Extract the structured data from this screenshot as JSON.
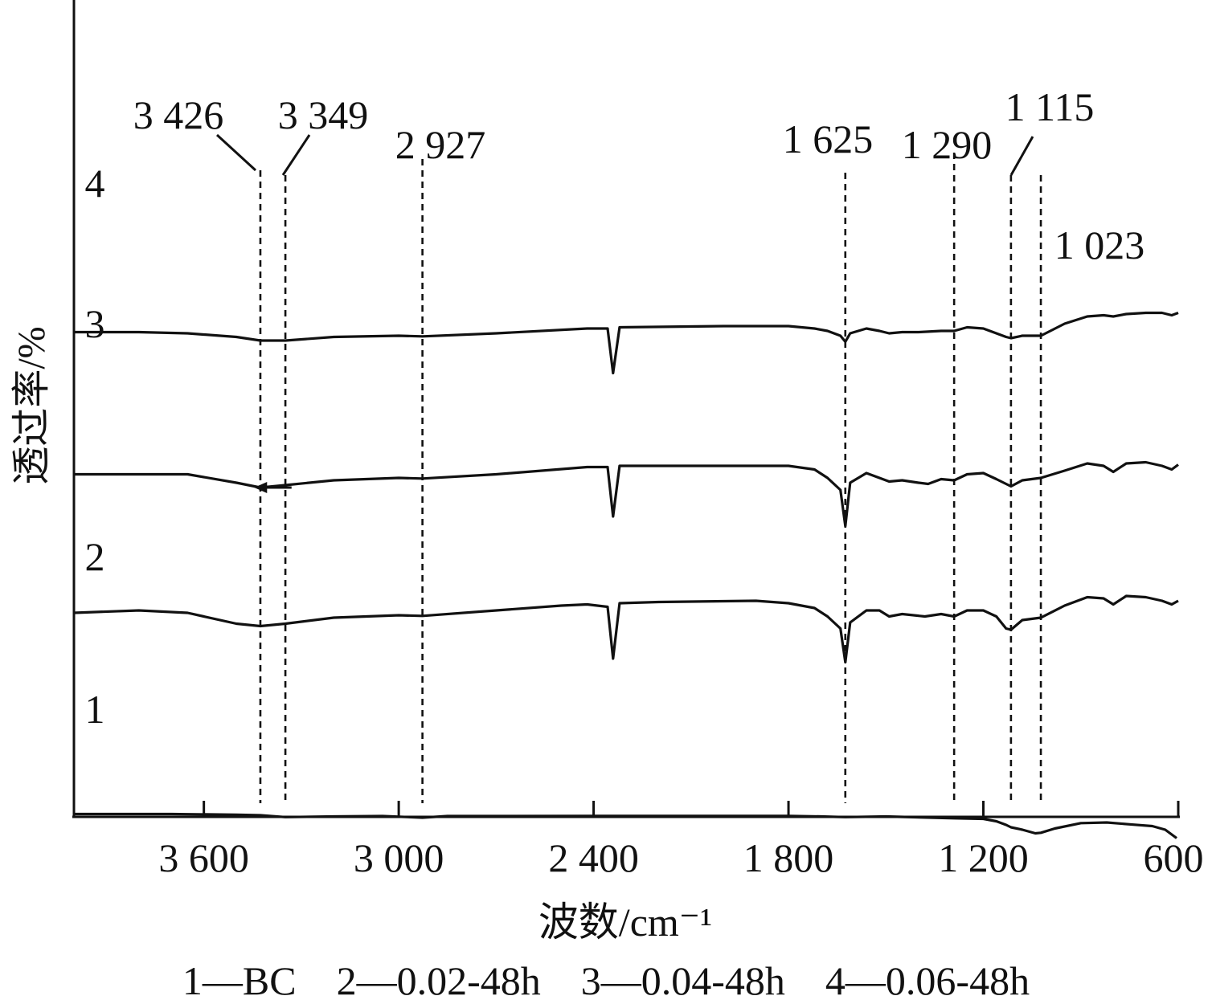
{
  "chart_data": {
    "type": "line",
    "xlabel": "波数/cm⁻¹",
    "ylabel": "透过率/%",
    "xlim": [
      4000,
      600
    ],
    "x_reversed": true,
    "x_ticks": [
      3600,
      3000,
      2400,
      1800,
      1200,
      600
    ],
    "x_tick_labels": [
      "3 600",
      "3 000",
      "2 400",
      "1 800",
      "1 200",
      "600"
    ],
    "y_ticks_shown": false,
    "series": [
      {
        "name": "1",
        "points": [
          [
            4000,
            0.91
          ],
          [
            3700,
            0.91
          ],
          [
            3500,
            0.905
          ],
          [
            3426,
            0.9
          ],
          [
            3349,
            0.885
          ],
          [
            3200,
            0.89
          ],
          [
            3050,
            0.893
          ],
          [
            2927,
            0.88
          ],
          [
            2850,
            0.893
          ],
          [
            2400,
            0.895
          ],
          [
            1800,
            0.895
          ],
          [
            1700,
            0.89
          ],
          [
            1625,
            0.885
          ],
          [
            1500,
            0.89
          ],
          [
            1290,
            0.875
          ],
          [
            1200,
            0.87
          ],
          [
            1160,
            0.85
          ],
          [
            1130,
            0.82
          ],
          [
            1115,
            0.8
          ],
          [
            1080,
            0.78
          ],
          [
            1040,
            0.75
          ],
          [
            1023,
            0.755
          ],
          [
            980,
            0.79
          ],
          [
            900,
            0.835
          ],
          [
            820,
            0.84
          ],
          [
            750,
            0.825
          ],
          [
            680,
            0.81
          ],
          [
            640,
            0.78
          ],
          [
            605,
            0.71
          ]
        ]
      },
      {
        "name": "2",
        "points": [
          [
            4000,
            2.58
          ],
          [
            3800,
            2.6
          ],
          [
            3650,
            2.58
          ],
          [
            3500,
            2.49
          ],
          [
            3426,
            2.47
          ],
          [
            3349,
            2.49
          ],
          [
            3200,
            2.54
          ],
          [
            3000,
            2.56
          ],
          [
            2927,
            2.555
          ],
          [
            2700,
            2.6
          ],
          [
            2500,
            2.64
          ],
          [
            2420,
            2.65
          ],
          [
            2357,
            2.63
          ],
          [
            2340,
            2.2
          ],
          [
            2320,
            2.66
          ],
          [
            2200,
            2.67
          ],
          [
            1900,
            2.68
          ],
          [
            1800,
            2.66
          ],
          [
            1720,
            2.62
          ],
          [
            1680,
            2.55
          ],
          [
            1640,
            2.45
          ],
          [
            1625,
            2.17
          ],
          [
            1610,
            2.5
          ],
          [
            1560,
            2.6
          ],
          [
            1520,
            2.6
          ],
          [
            1490,
            2.55
          ],
          [
            1450,
            2.57
          ],
          [
            1380,
            2.55
          ],
          [
            1330,
            2.57
          ],
          [
            1290,
            2.55
          ],
          [
            1250,
            2.6
          ],
          [
            1200,
            2.6
          ],
          [
            1160,
            2.55
          ],
          [
            1130,
            2.45
          ],
          [
            1115,
            2.44
          ],
          [
            1080,
            2.52
          ],
          [
            1023,
            2.54
          ],
          [
            950,
            2.64
          ],
          [
            880,
            2.71
          ],
          [
            830,
            2.7
          ],
          [
            800,
            2.65
          ],
          [
            760,
            2.72
          ],
          [
            700,
            2.71
          ],
          [
            650,
            2.68
          ],
          [
            620,
            2.65
          ],
          [
            600,
            2.68
          ]
        ]
      },
      {
        "name": "3",
        "points": [
          [
            4000,
            3.73
          ],
          [
            3800,
            3.73
          ],
          [
            3650,
            3.73
          ],
          [
            3500,
            3.66
          ],
          [
            3426,
            3.62
          ],
          [
            3349,
            3.64
          ],
          [
            3200,
            3.68
          ],
          [
            3000,
            3.7
          ],
          [
            2927,
            3.695
          ],
          [
            2700,
            3.73
          ],
          [
            2420,
            3.79
          ],
          [
            2357,
            3.79
          ],
          [
            2340,
            3.38
          ],
          [
            2320,
            3.8
          ],
          [
            2000,
            3.8
          ],
          [
            1800,
            3.8
          ],
          [
            1720,
            3.77
          ],
          [
            1680,
            3.7
          ],
          [
            1640,
            3.6
          ],
          [
            1625,
            3.3
          ],
          [
            1610,
            3.66
          ],
          [
            1560,
            3.74
          ],
          [
            1520,
            3.7
          ],
          [
            1490,
            3.67
          ],
          [
            1450,
            3.68
          ],
          [
            1400,
            3.66
          ],
          [
            1370,
            3.65
          ],
          [
            1330,
            3.69
          ],
          [
            1290,
            3.68
          ],
          [
            1250,
            3.73
          ],
          [
            1200,
            3.74
          ],
          [
            1160,
            3.69
          ],
          [
            1130,
            3.65
          ],
          [
            1115,
            3.63
          ],
          [
            1080,
            3.68
          ],
          [
            1023,
            3.7
          ],
          [
            950,
            3.76
          ],
          [
            880,
            3.82
          ],
          [
            830,
            3.8
          ],
          [
            800,
            3.75
          ],
          [
            760,
            3.82
          ],
          [
            700,
            3.83
          ],
          [
            650,
            3.8
          ],
          [
            620,
            3.77
          ],
          [
            600,
            3.81
          ]
        ]
      },
      {
        "name": "4",
        "points": [
          [
            4000,
            4.91
          ],
          [
            3800,
            4.91
          ],
          [
            3650,
            4.9
          ],
          [
            3500,
            4.87
          ],
          [
            3426,
            4.84
          ],
          [
            3349,
            4.84
          ],
          [
            3200,
            4.87
          ],
          [
            3000,
            4.88
          ],
          [
            2927,
            4.875
          ],
          [
            2700,
            4.9
          ],
          [
            2420,
            4.94
          ],
          [
            2357,
            4.94
          ],
          [
            2340,
            4.57
          ],
          [
            2320,
            4.95
          ],
          [
            2000,
            4.96
          ],
          [
            1800,
            4.96
          ],
          [
            1720,
            4.94
          ],
          [
            1680,
            4.92
          ],
          [
            1640,
            4.88
          ],
          [
            1625,
            4.83
          ],
          [
            1610,
            4.9
          ],
          [
            1560,
            4.94
          ],
          [
            1520,
            4.92
          ],
          [
            1490,
            4.9
          ],
          [
            1450,
            4.91
          ],
          [
            1400,
            4.91
          ],
          [
            1330,
            4.92
          ],
          [
            1290,
            4.92
          ],
          [
            1250,
            4.95
          ],
          [
            1200,
            4.94
          ],
          [
            1160,
            4.9
          ],
          [
            1130,
            4.87
          ],
          [
            1115,
            4.86
          ],
          [
            1080,
            4.88
          ],
          [
            1023,
            4.88
          ],
          [
            950,
            4.98
          ],
          [
            880,
            5.04
          ],
          [
            830,
            5.05
          ],
          [
            800,
            5.04
          ],
          [
            760,
            5.06
          ],
          [
            700,
            5.07
          ],
          [
            650,
            5.07
          ],
          [
            620,
            5.05
          ],
          [
            600,
            5.07
          ]
        ]
      }
    ],
    "series_labels": [
      "1",
      "2",
      "3",
      "4"
    ],
    "reference_lines": [
      {
        "x": 3426,
        "label": "3 426"
      },
      {
        "x": 3349,
        "label": "3 349"
      },
      {
        "x": 2927,
        "label": "2 927"
      },
      {
        "x": 1625,
        "label": "1 625"
      },
      {
        "x": 1290,
        "label": "1 290"
      },
      {
        "x": 1115,
        "label": "1 115"
      },
      {
        "x": 1023,
        "label": "1 023"
      }
    ],
    "arrow": {
      "from": 3330,
      "to": 3445,
      "y": 3.05,
      "direction": "left"
    },
    "legend": "1—BC    2—0.02-48h    3—0.04-48h    4—0.06-48h",
    "grid": false
  }
}
